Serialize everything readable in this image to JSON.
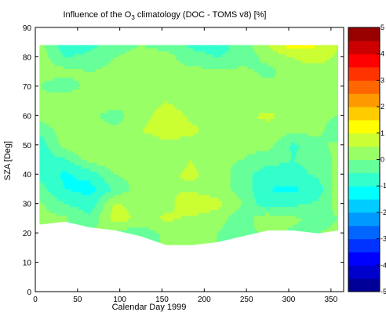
{
  "chart_data": {
    "type": "heatmap",
    "title": "Influence of the O₃ climatology (DOC - TOMS v8) [%]",
    "title_parts": {
      "before": "Influence of the O",
      "subscript": "3",
      "after": " climatology (DOC - TOMS v8) [%]"
    },
    "xlabel": "Calendar Day 1999",
    "ylabel": "SZA [Deg]",
    "xlim": [
      0,
      365
    ],
    "ylim": [
      0,
      90
    ],
    "xticks": [
      0,
      50,
      100,
      150,
      200,
      250,
      300,
      350
    ],
    "yticks": [
      0,
      10,
      20,
      30,
      40,
      50,
      60,
      70,
      80,
      90
    ],
    "colorbar": {
      "range": [
        -5,
        5
      ],
      "ticks": [
        5,
        4,
        3,
        2,
        1,
        0,
        -1,
        -2,
        -3,
        -4,
        -5
      ],
      "tick_labels": [
        "5",
        "4",
        "3",
        "2",
        "1",
        "0",
        "-1",
        "-2",
        "-3",
        "-4",
        "-5"
      ],
      "colormap": "jet"
    },
    "x_days": [
      5,
      35,
      65,
      95,
      125,
      155,
      185,
      215,
      245,
      275,
      305,
      335,
      358
    ],
    "y_sza": [
      20,
      25,
      30,
      35,
      40,
      45,
      50,
      55,
      60,
      65,
      70,
      75,
      80,
      84
    ],
    "values": [
      [
        0.0,
        -0.3,
        0.2,
        -0.2,
        -0.3,
        0.1,
        0.2,
        0.0,
        -0.2,
        0.1,
        -0.1,
        0.0,
        0.1
      ],
      [
        0.2,
        0.1,
        -0.4,
        0.8,
        0.3,
        0.6,
        0.4,
        0.2,
        -0.3,
        0.4,
        0.1,
        -0.2,
        0.0
      ],
      [
        0.1,
        -0.5,
        -0.8,
        0.6,
        0.2,
        0.3,
        0.9,
        0.7,
        0.0,
        -0.9,
        -0.6,
        -0.4,
        0.2
      ],
      [
        -0.3,
        -1.0,
        -1.2,
        -0.4,
        0.3,
        0.5,
        0.4,
        0.2,
        -0.2,
        -1.0,
        -1.1,
        -0.8,
        0.3
      ],
      [
        -0.6,
        -1.1,
        -0.8,
        0.0,
        0.2,
        0.4,
        0.6,
        0.3,
        -0.3,
        -0.8,
        -0.7,
        -0.4,
        0.2
      ],
      [
        -0.7,
        -0.6,
        0.2,
        0.4,
        0.3,
        0.2,
        0.5,
        0.1,
        0.0,
        -0.3,
        -0.5,
        -0.3,
        0.1
      ],
      [
        -0.8,
        0.2,
        0.5,
        0.3,
        0.2,
        0.4,
        0.3,
        0.2,
        0.1,
        0.2,
        -0.6,
        -0.2,
        0.2
      ],
      [
        -0.4,
        0.3,
        0.2,
        0.1,
        0.5,
        0.7,
        0.6,
        0.3,
        0.2,
        0.3,
        0.1,
        0.2,
        -0.5
      ],
      [
        0.2,
        0.5,
        0.1,
        -0.2,
        0.3,
        0.8,
        0.4,
        0.3,
        0.4,
        0.6,
        0.3,
        0.2,
        0.0
      ],
      [
        0.1,
        0.4,
        0.3,
        0.2,
        0.1,
        0.5,
        0.2,
        0.4,
        0.3,
        0.2,
        0.4,
        0.3,
        0.3
      ],
      [
        0.0,
        -0.3,
        0.2,
        0.3,
        0.2,
        0.2,
        0.1,
        0.4,
        0.3,
        0.2,
        0.1,
        0.4,
        0.2
      ],
      [
        0.1,
        0.2,
        0.0,
        0.2,
        0.3,
        0.1,
        0.2,
        0.1,
        0.2,
        -0.2,
        0.3,
        0.2,
        0.1
      ],
      [
        0.3,
        -0.5,
        -0.4,
        0.0,
        0.3,
        0.2,
        -0.3,
        -0.5,
        -0.4,
        0.2,
        0.5,
        0.8,
        0.4
      ],
      [
        0.2,
        -0.8,
        -0.6,
        -0.3,
        0.0,
        -0.2,
        -0.6,
        -0.7,
        -0.3,
        0.5,
        1.3,
        1.0,
        0.5
      ]
    ],
    "lower_boundary_sza": [
      23,
      24,
      22,
      21,
      19,
      16,
      16,
      17,
      19,
      21,
      21,
      20,
      21
    ]
  }
}
